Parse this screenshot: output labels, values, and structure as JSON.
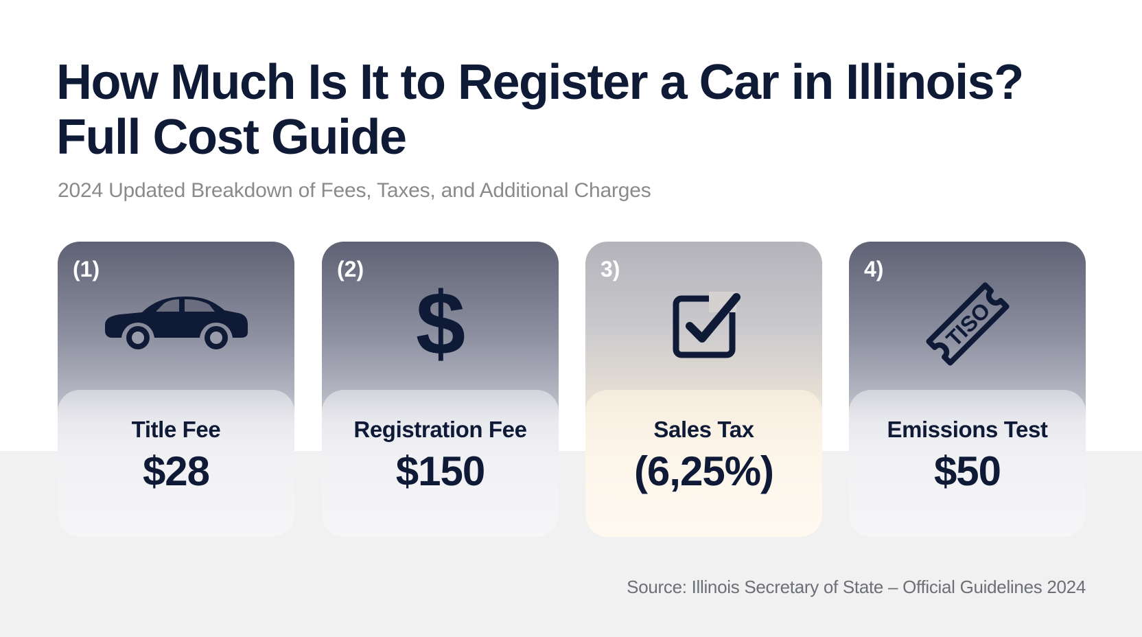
{
  "header": {
    "title_line1": "How Much Is It to Register a Car in Illinois?",
    "title_line2": "Full Cost Guide",
    "subtitle": "2024 Updated Breakdown of Fees, Taxes, and Additional Charges"
  },
  "cards": [
    {
      "number": "(1)",
      "icon": "car-icon",
      "label": "Title Fee",
      "value": "$28"
    },
    {
      "number": "(2)",
      "icon": "dollar-sign-icon",
      "label": "Registration Fee",
      "value": "$150"
    },
    {
      "number": "3)",
      "icon": "checkbox-checked-icon",
      "label": "Sales Tax",
      "value": "(6,25%)"
    },
    {
      "number": "4)",
      "icon": "ticket-icon",
      "icon_text": "TISO",
      "label": "Emissions Test",
      "value": "$50"
    }
  ],
  "footer": {
    "source": "Source: Illinois Secretary of State – Official Guidelines 2024"
  },
  "colors": {
    "title": "#0e1a36",
    "subtitle": "#8a8a8a",
    "card_top": "#5f6274",
    "highlight_panel": "#fdf6ec"
  }
}
